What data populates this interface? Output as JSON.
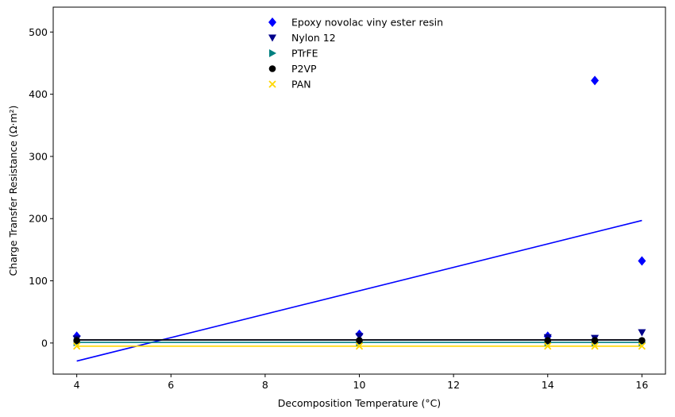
{
  "chart_data": {
    "type": "scatter",
    "xlabel": "Decomposition Temperature (°C)",
    "ylabel": "Charge Transfer Resistance (Ω·m²)",
    "xlim": [
      3.5,
      16.5
    ],
    "ylim": [
      -50,
      540
    ],
    "xticks": [
      4,
      6,
      8,
      10,
      12,
      14,
      16
    ],
    "yticks": [
      0,
      100,
      200,
      300,
      400,
      500
    ],
    "grid": false,
    "legend_position": "top-center",
    "series": [
      {
        "name": "Epoxy novolac viny ester resin",
        "marker": "diamond",
        "color": "#0000ff",
        "points": [
          [
            4,
            11
          ],
          [
            10,
            14
          ],
          [
            14,
            11
          ],
          [
            15,
            422
          ],
          [
            16,
            132
          ]
        ],
        "fit": {
          "color": "#0000ff",
          "x": [
            4,
            16
          ],
          "y": [
            -29,
            197
          ]
        }
      },
      {
        "name": "Nylon 12",
        "marker": "triangle-down",
        "color": "#00008b",
        "points": [
          [
            4,
            7
          ],
          [
            10,
            11
          ],
          [
            14,
            9
          ],
          [
            15,
            8
          ],
          [
            16,
            17
          ]
        ],
        "fit": {
          "color": "#00008b",
          "x": [
            4,
            16
          ],
          "y": [
            5,
            5
          ]
        }
      },
      {
        "name": "PTrFE",
        "marker": "triangle-right",
        "color": "#008080",
        "points": [
          [
            4,
            1
          ],
          [
            10,
            1
          ],
          [
            14,
            1
          ],
          [
            15,
            1
          ],
          [
            16,
            1
          ]
        ],
        "fit": {
          "color": "#008080",
          "x": [
            4,
            16
          ],
          "y": [
            1,
            1
          ]
        }
      },
      {
        "name": "P2VP",
        "marker": "circle",
        "color": "#000000",
        "points": [
          [
            4,
            4
          ],
          [
            10,
            4
          ],
          [
            14,
            4
          ],
          [
            15,
            4
          ],
          [
            16,
            4
          ]
        ],
        "fit": {
          "color": "#000000",
          "x": [
            4,
            16
          ],
          "y": [
            5,
            5
          ]
        }
      },
      {
        "name": "PAN",
        "marker": "x",
        "color": "#ffd700",
        "points": [
          [
            4,
            -5
          ],
          [
            10,
            -5
          ],
          [
            14,
            -5
          ],
          [
            15,
            -5
          ],
          [
            16,
            -5
          ]
        ],
        "fit": {
          "color": "#ffd700",
          "x": [
            4,
            16
          ],
          "y": [
            -5,
            -5
          ]
        }
      }
    ]
  }
}
